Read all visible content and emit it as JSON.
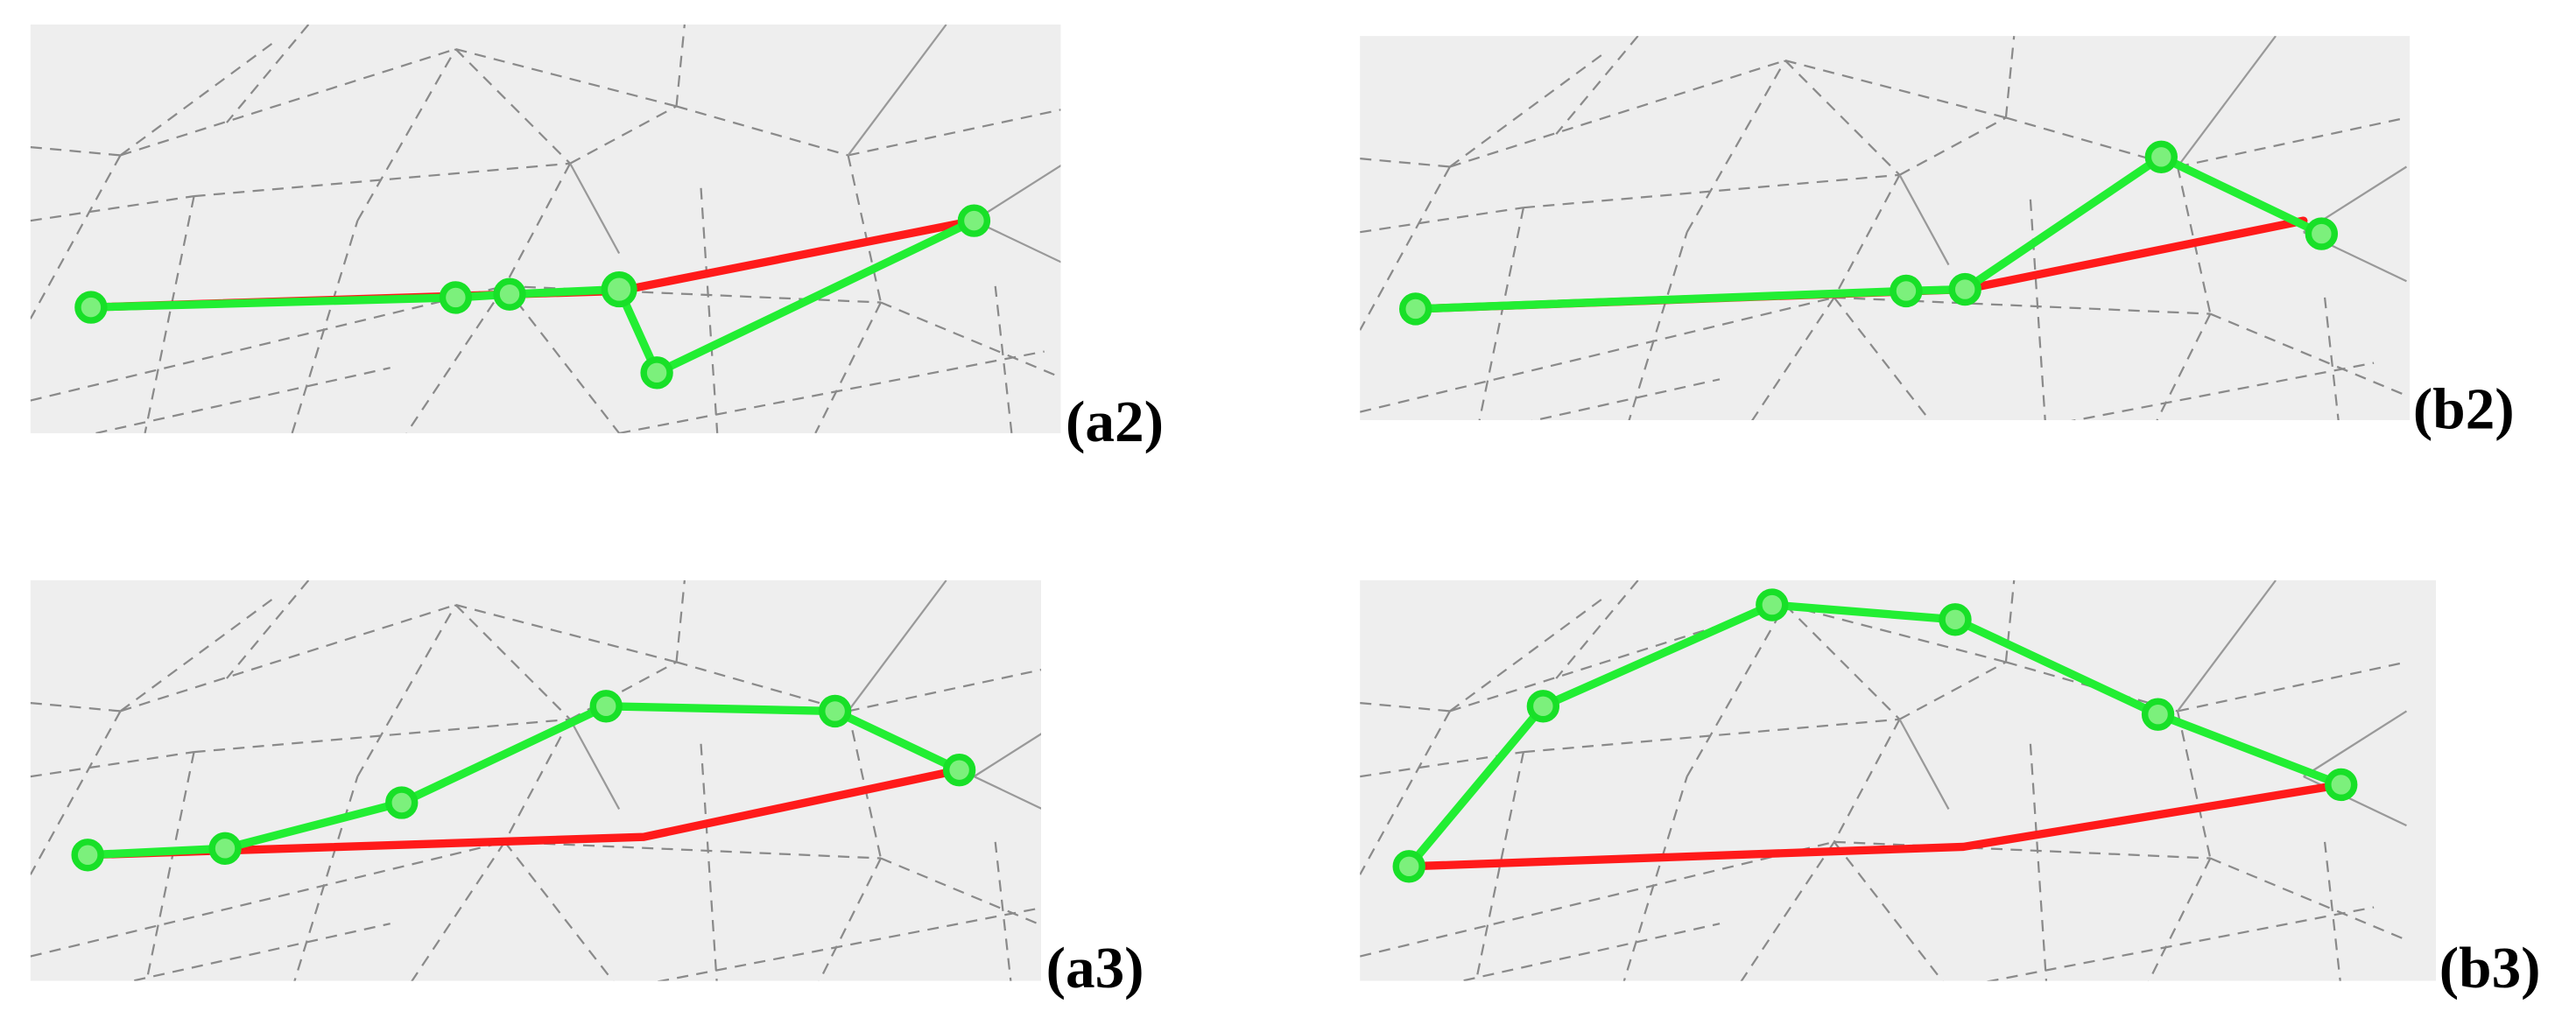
{
  "panels": [
    {
      "label": "(a2)"
    },
    {
      "label": "(b2)"
    },
    {
      "label": "(a3)"
    },
    {
      "label": "(b3)"
    }
  ]
}
